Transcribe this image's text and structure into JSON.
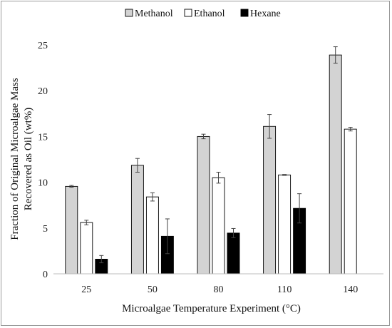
{
  "chart_data": {
    "type": "bar",
    "title": "",
    "xlabel": "Microalgae Temperature Experiment (°C)",
    "ylabel_lines": [
      "Fraction of Original Microalgae Mass",
      "Recovered as Oil (wt%)"
    ],
    "categories": [
      "25",
      "50",
      "80",
      "110",
      "140"
    ],
    "ylim": [
      0,
      25
    ],
    "yticks": [
      0,
      5,
      10,
      15,
      20,
      25
    ],
    "grid": false,
    "legend_position": "top-center",
    "series": [
      {
        "name": "Methanol",
        "color": "#d3d3d3",
        "values": [
          9.55,
          11.85,
          15.0,
          16.1,
          23.9
        ],
        "errors": [
          0.1,
          0.75,
          0.25,
          1.3,
          0.9
        ]
      },
      {
        "name": "Ethanol",
        "color": "#ffffff",
        "values": [
          5.6,
          8.4,
          10.5,
          10.8,
          15.8
        ],
        "errors": [
          0.25,
          0.45,
          0.6,
          0.05,
          0.2
        ]
      },
      {
        "name": "Hexane",
        "color": "#000000",
        "values": [
          1.6,
          4.1,
          4.45,
          7.15,
          null
        ],
        "errors": [
          0.4,
          1.9,
          0.5,
          1.6,
          null
        ]
      }
    ]
  }
}
